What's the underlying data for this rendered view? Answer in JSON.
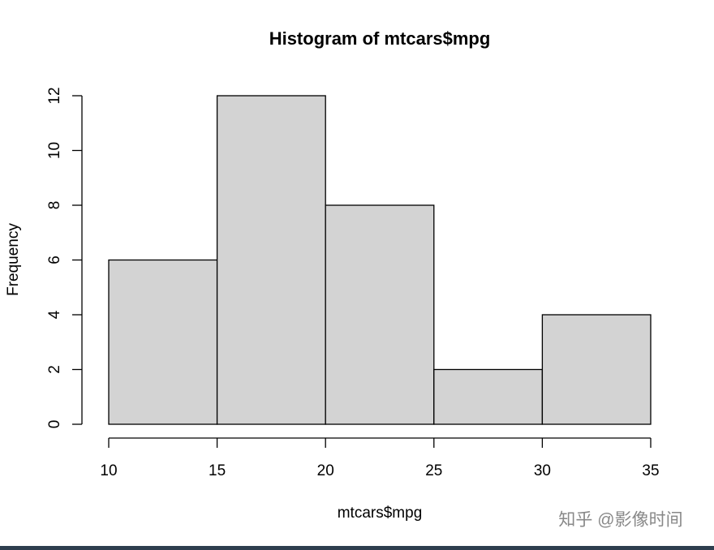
{
  "chart_data": {
    "type": "histogram",
    "title": "Histogram of mtcars$mpg",
    "x_label": "mtcars$mpg",
    "y_label": "Frequency",
    "bins": [
      10,
      15,
      20,
      25,
      30,
      35
    ],
    "values": [
      6,
      12,
      8,
      2,
      4
    ],
    "color": "#d3d3d3",
    "xlim": [
      10,
      35
    ],
    "ylim": [
      0,
      12
    ],
    "xticks": [
      10,
      15,
      20,
      25,
      30,
      35
    ],
    "yticks": [
      0,
      2,
      4,
      6,
      8,
      10,
      12
    ]
  },
  "watermark": "知乎 @影像时间"
}
